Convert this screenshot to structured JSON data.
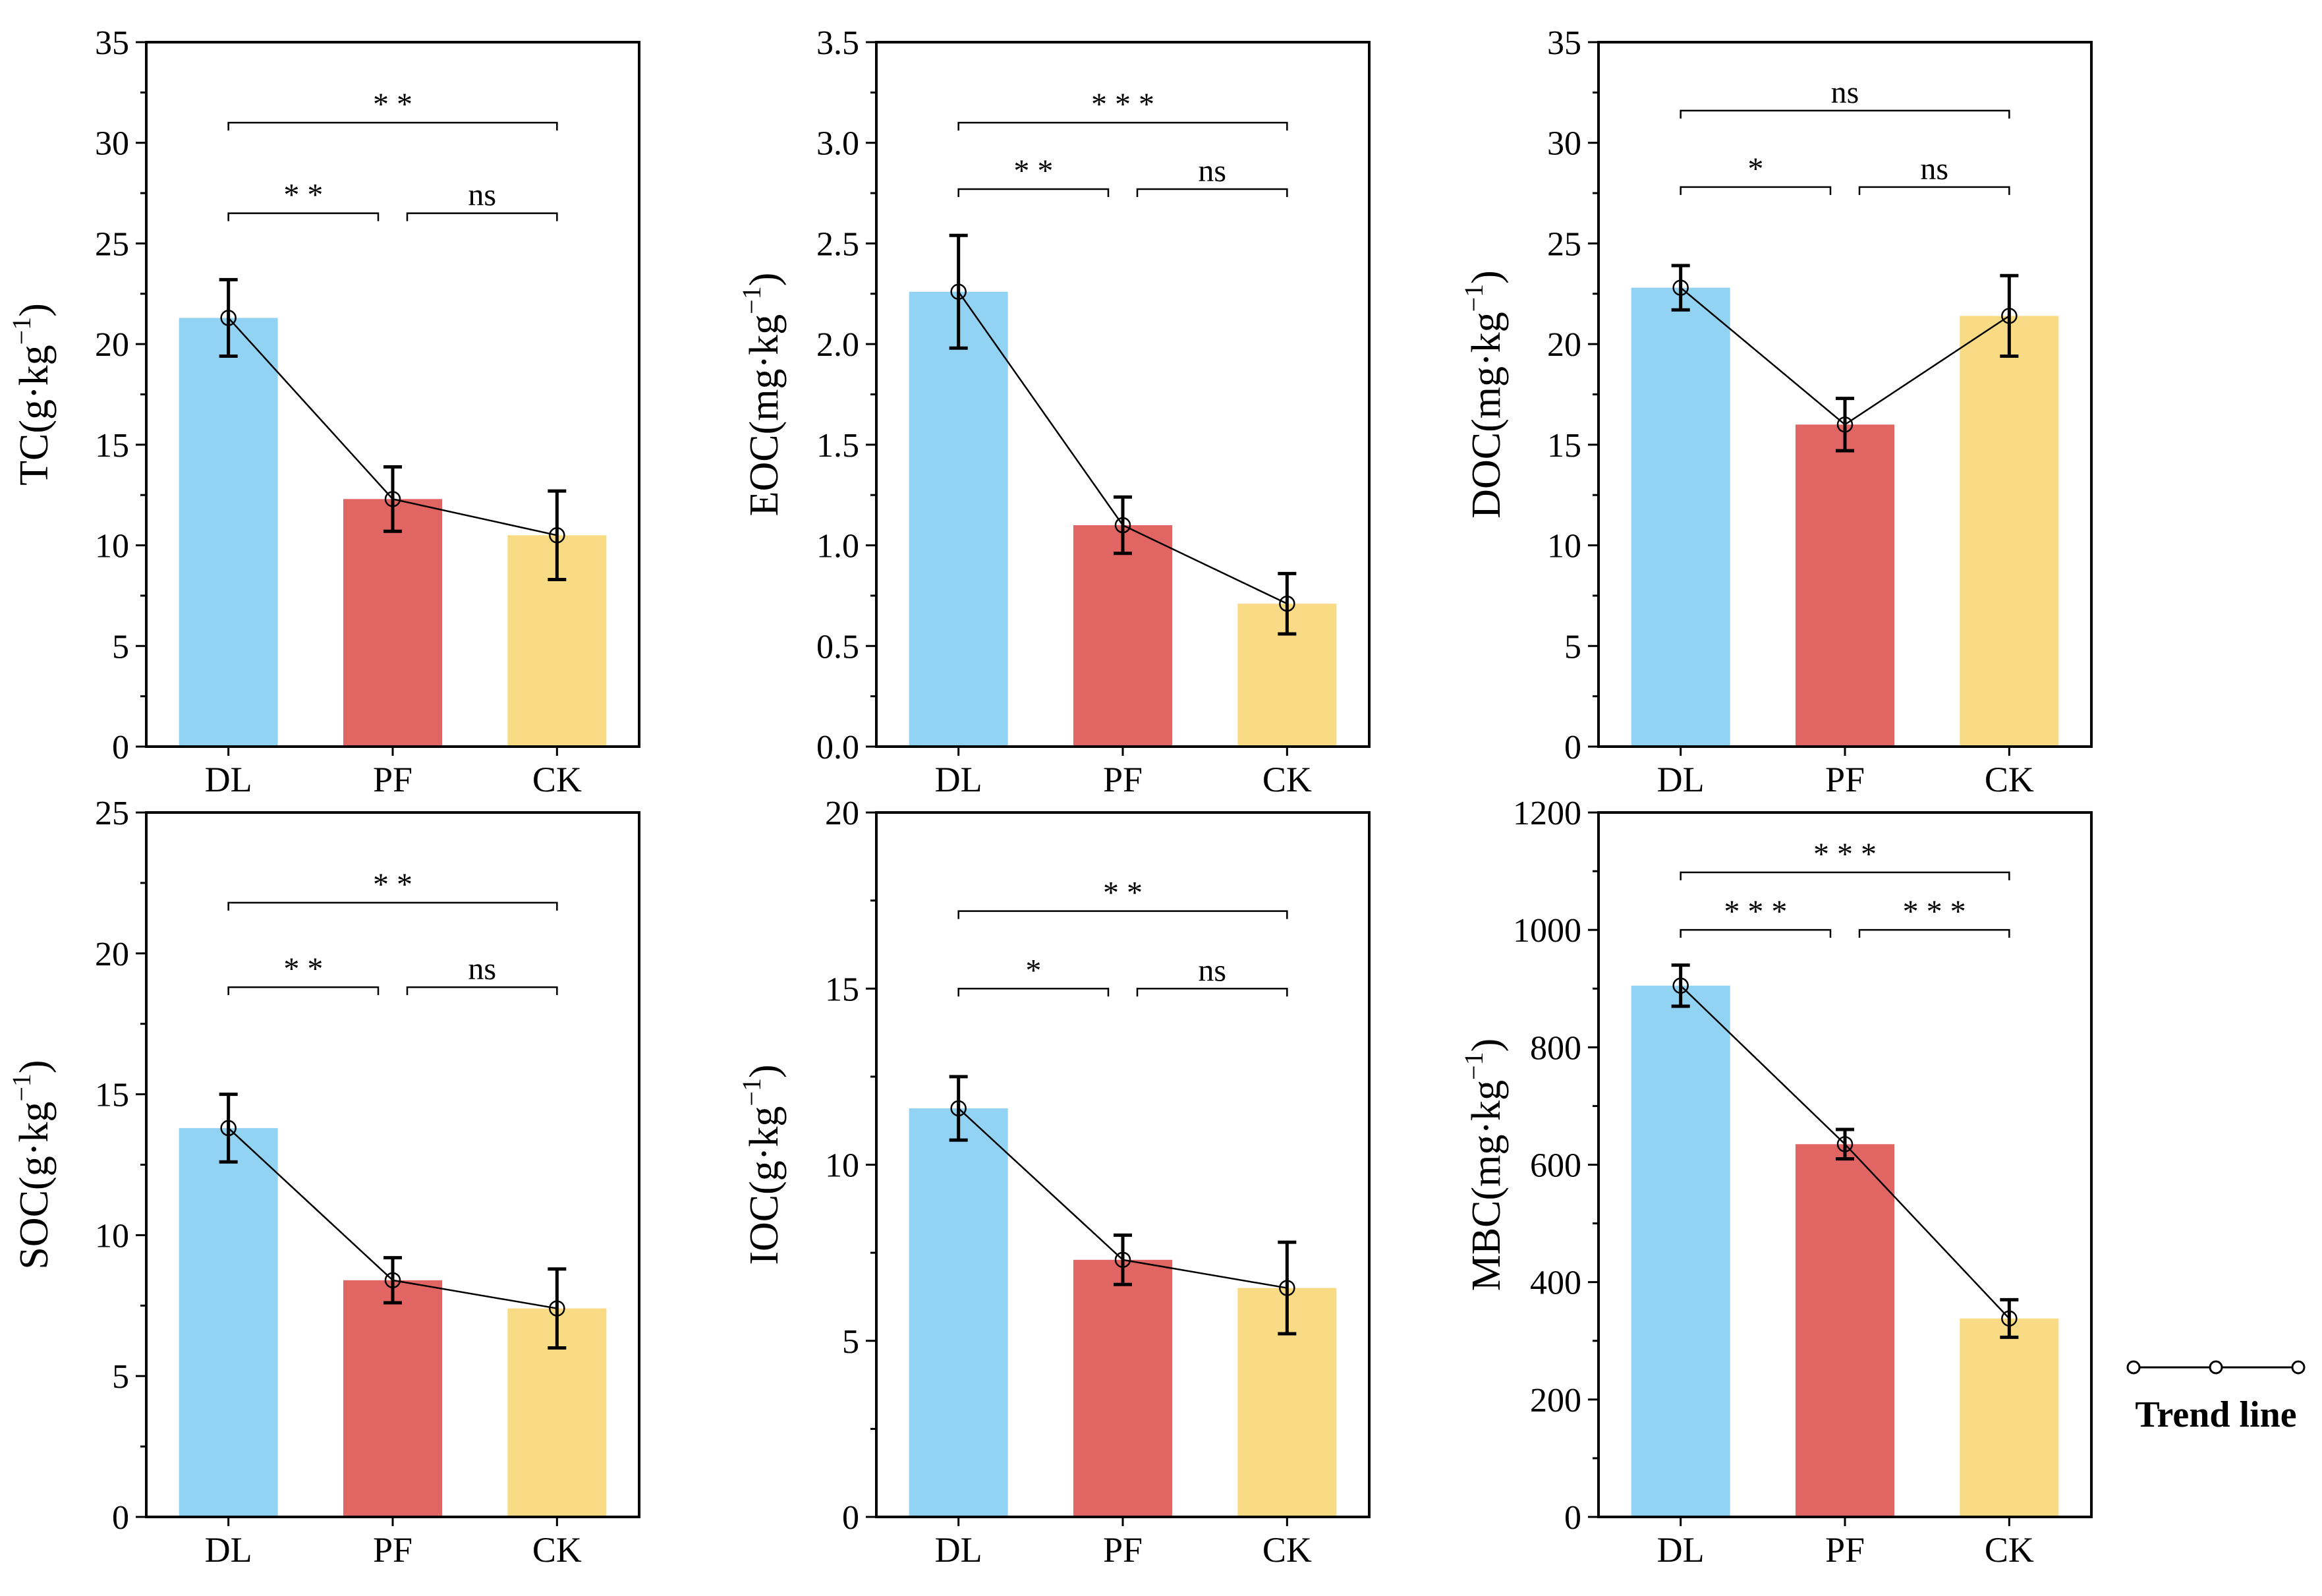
{
  "colors": {
    "DL": "#92d3f3",
    "PF": "#e06563",
    "CK": "#f9db86",
    "trend": "#000000"
  },
  "legend": {
    "label": "Trend line"
  },
  "chart_data": [
    {
      "type": "bar",
      "categories": [
        "DL",
        "PF",
        "CK"
      ],
      "values": [
        21.3,
        12.3,
        10.5
      ],
      "errors": [
        1.9,
        1.6,
        2.2
      ],
      "ylabel": {
        "main": "TC(g·kg",
        "sup": "−1",
        "close": ")"
      },
      "ylim": [
        0,
        35
      ],
      "yticks": [
        0,
        5,
        10,
        15,
        20,
        25,
        30,
        35
      ],
      "yticks_labels": [
        "0",
        "5",
        "10",
        "15",
        "20",
        "25",
        "30",
        "35"
      ],
      "trend_line": true,
      "significance": [
        {
          "from": 0,
          "to": 1,
          "label": "* *",
          "y": 26.5
        },
        {
          "from": 1,
          "to": 2,
          "label": "ns",
          "y": 26.5
        },
        {
          "from": 0,
          "to": 2,
          "label": "* *",
          "y": 31.0
        }
      ]
    },
    {
      "type": "bar",
      "categories": [
        "DL",
        "PF",
        "CK"
      ],
      "values": [
        2.26,
        1.1,
        0.71
      ],
      "errors": [
        0.28,
        0.14,
        0.15
      ],
      "ylabel": {
        "main": "EOC(mg·kg",
        "sup": "−1",
        "close": ")"
      },
      "ylim": [
        0,
        3.5
      ],
      "yticks": [
        0,
        0.5,
        1.0,
        1.5,
        2.0,
        2.5,
        3.0,
        3.5
      ],
      "yticks_labels": [
        "0.0",
        "0.5",
        "1.0",
        "1.5",
        "2.0",
        "2.5",
        "3.0",
        "3.5"
      ],
      "trend_line": true,
      "significance": [
        {
          "from": 0,
          "to": 1,
          "label": "* *",
          "y": 2.77
        },
        {
          "from": 1,
          "to": 2,
          "label": "ns",
          "y": 2.77
        },
        {
          "from": 0,
          "to": 2,
          "label": "* * *",
          "y": 3.1
        }
      ]
    },
    {
      "type": "bar",
      "categories": [
        "DL",
        "PF",
        "CK"
      ],
      "values": [
        22.8,
        16.0,
        21.4
      ],
      "errors": [
        1.1,
        1.3,
        2.0
      ],
      "ylabel": {
        "main": "DOC(mg·kg",
        "sup": "−1",
        "close": ")"
      },
      "ylim": [
        0,
        35
      ],
      "yticks": [
        0,
        5,
        10,
        15,
        20,
        25,
        30,
        35
      ],
      "yticks_labels": [
        "0",
        "5",
        "10",
        "15",
        "20",
        "25",
        "30",
        "35"
      ],
      "trend_line": true,
      "significance": [
        {
          "from": 0,
          "to": 1,
          "label": "*",
          "y": 27.8
        },
        {
          "from": 1,
          "to": 2,
          "label": "ns",
          "y": 27.8
        },
        {
          "from": 0,
          "to": 2,
          "label": "ns",
          "y": 31.6
        }
      ]
    },
    {
      "type": "bar",
      "categories": [
        "DL",
        "PF",
        "CK"
      ],
      "values": [
        13.8,
        8.4,
        7.4
      ],
      "errors": [
        1.2,
        0.8,
        1.4
      ],
      "ylabel": {
        "main": "SOC(g·kg",
        "sup": "−1",
        "close": ")"
      },
      "ylim": [
        0,
        25
      ],
      "yticks": [
        0,
        5,
        10,
        15,
        20,
        25
      ],
      "yticks_labels": [
        "0",
        "5",
        "10",
        "15",
        "20",
        "25"
      ],
      "trend_line": true,
      "significance": [
        {
          "from": 0,
          "to": 1,
          "label": "* *",
          "y": 18.8
        },
        {
          "from": 1,
          "to": 2,
          "label": "ns",
          "y": 18.8
        },
        {
          "from": 0,
          "to": 2,
          "label": "* *",
          "y": 21.8
        }
      ]
    },
    {
      "type": "bar",
      "categories": [
        "DL",
        "PF",
        "CK"
      ],
      "values": [
        11.6,
        7.3,
        6.5
      ],
      "errors": [
        0.9,
        0.7,
        1.3
      ],
      "ylabel": {
        "main": "IOC(g·kg",
        "sup": "−1",
        "close": ")"
      },
      "ylim": [
        0,
        20
      ],
      "yticks": [
        0,
        5,
        10,
        15,
        20
      ],
      "yticks_labels": [
        "0",
        "5",
        "10",
        "15",
        "20"
      ],
      "trend_line": true,
      "significance": [
        {
          "from": 0,
          "to": 1,
          "label": "*",
          "y": 15.0
        },
        {
          "from": 1,
          "to": 2,
          "label": "ns",
          "y": 15.0
        },
        {
          "from": 0,
          "to": 2,
          "label": "* *",
          "y": 17.2
        }
      ]
    },
    {
      "type": "bar",
      "categories": [
        "DL",
        "PF",
        "CK"
      ],
      "values": [
        905,
        635,
        338
      ],
      "errors": [
        35,
        25,
        32
      ],
      "ylabel": {
        "main": "MBC(mg·kg",
        "sup": "−1",
        "close": ")"
      },
      "ylim": [
        0,
        1200
      ],
      "yticks": [
        0,
        200,
        400,
        600,
        800,
        1000,
        1200
      ],
      "yticks_labels": [
        "0",
        "200",
        "400",
        "600",
        "800",
        "1000",
        "1200"
      ],
      "trend_line": true,
      "significance": [
        {
          "from": 0,
          "to": 1,
          "label": "* * *",
          "y": 1000
        },
        {
          "from": 1,
          "to": 2,
          "label": "* * *",
          "y": 1000
        },
        {
          "from": 0,
          "to": 2,
          "label": "* * *",
          "y": 1098
        }
      ]
    }
  ]
}
